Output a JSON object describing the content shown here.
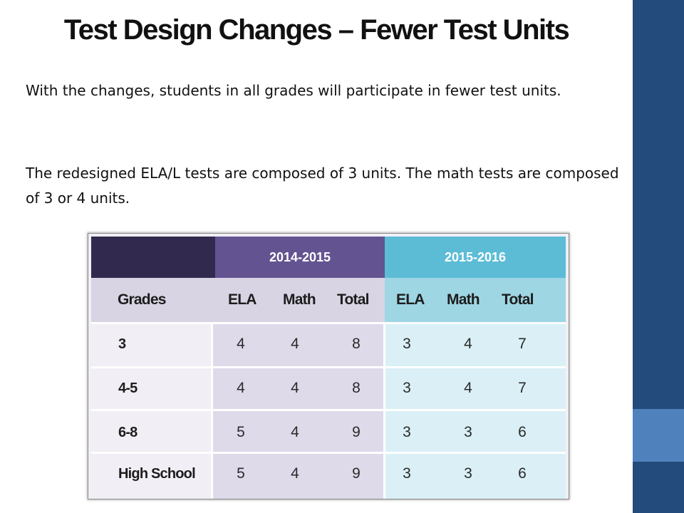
{
  "slide": {
    "title": "Test Design Changes – Fewer Test Units",
    "paragraph1": "With the changes, students in all grades will participate in fewer test units.",
    "paragraph2": "The redesigned ELA/L tests are composed of 3 units. The math tests are composed of 3 or 4 units."
  },
  "table": {
    "year_headers": [
      "2014-2015",
      "2015-2016"
    ],
    "column_headers": [
      "Grades",
      "ELA",
      "Math",
      "Total",
      "ELA",
      "Math",
      "Total"
    ],
    "rows": [
      {
        "grade": "3",
        "values": [
          "4",
          "4",
          "8",
          "3",
          "4",
          "7"
        ]
      },
      {
        "grade": "4-5",
        "values": [
          "4",
          "4",
          "8",
          "3",
          "4",
          "7"
        ]
      },
      {
        "grade": "6-8",
        "values": [
          "5",
          "4",
          "9",
          "3",
          "3",
          "6"
        ]
      },
      {
        "grade": "High School",
        "values": [
          "5",
          "4",
          "9",
          "3",
          "3",
          "6"
        ]
      }
    ]
  },
  "colors": {
    "sidebar": "#234b7b",
    "sidebar_accent": "#4f82bd",
    "header_2014_2015": "#645391",
    "header_2015_2016": "#5cbcd6",
    "header_corner": "#32294f"
  }
}
